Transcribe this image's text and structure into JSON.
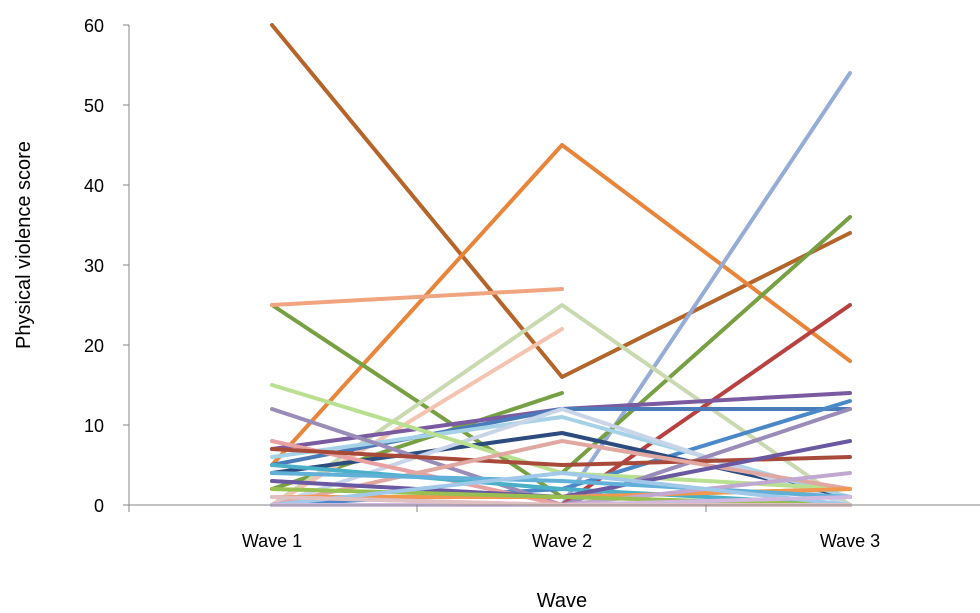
{
  "chart_data": {
    "type": "line",
    "title": "",
    "xlabel": "Wave",
    "ylabel": "Physical violence score",
    "categories": [
      "Wave 1",
      "Wave 2",
      "Wave 3"
    ],
    "y_ticks": [
      "0",
      "10",
      "20",
      "30",
      "40",
      "50",
      "60"
    ],
    "ylim": [
      0,
      60
    ],
    "grid": false,
    "legend": "none",
    "series": [
      {
        "color": "#b5642a",
        "values": [
          60,
          16,
          34
        ]
      },
      {
        "color": "#e8853a",
        "values": [
          5,
          45,
          18
        ]
      },
      {
        "color": "#95acd6",
        "values": [
          0,
          0,
          54
        ]
      },
      {
        "color": "#77a043",
        "values": [
          25,
          1,
          2
        ]
      },
      {
        "color": "#77a043",
        "values": [
          2,
          14,
          null
        ]
      },
      {
        "color": "#77a043",
        "values": [
          null,
          4,
          36
        ]
      },
      {
        "color": "#f0a580",
        "values": [
          25,
          27,
          null
        ]
      },
      {
        "color": "#c9dab0",
        "values": [
          0,
          25,
          0
        ]
      },
      {
        "color": "#f5c4b0",
        "values": [
          0,
          22,
          null
        ]
      },
      {
        "color": "#b84040",
        "values": [
          null,
          0,
          25
        ]
      },
      {
        "color": "#7a5aa0",
        "values": [
          7,
          12,
          14
        ]
      },
      {
        "color": "#4a7ab8",
        "values": [
          5,
          12,
          12
        ]
      },
      {
        "color": "#4a88c8",
        "values": [
          0,
          2,
          13
        ]
      },
      {
        "color": "#2c4c80",
        "values": [
          4,
          9,
          1
        ]
      },
      {
        "color": "#a6d2e8",
        "values": [
          6,
          11,
          1
        ]
      },
      {
        "color": "#c8d4e8",
        "values": [
          0,
          12,
          0
        ]
      },
      {
        "color": "#b8e090",
        "values": [
          15,
          4,
          2
        ]
      },
      {
        "color": "#9a8cb8",
        "values": [
          12,
          0,
          12
        ]
      },
      {
        "color": "#e8a0a0",
        "values": [
          8,
          0,
          0
        ]
      },
      {
        "color": "#a84a3a",
        "values": [
          7,
          5,
          6
        ]
      },
      {
        "color": "#e0a8a0",
        "values": [
          0,
          8,
          2
        ]
      },
      {
        "color": "#4ab0c8",
        "values": [
          5,
          2,
          0
        ]
      },
      {
        "color": "#6a58a0",
        "values": [
          3,
          1,
          8
        ]
      },
      {
        "color": "#f09850",
        "values": [
          1,
          1,
          2
        ]
      },
      {
        "color": "#60b0d8",
        "values": [
          4,
          3,
          1
        ]
      },
      {
        "color": "#c0a8d0",
        "values": [
          1,
          0,
          4
        ]
      },
      {
        "color": "#98c050",
        "values": [
          2,
          1,
          0
        ]
      },
      {
        "color": "#a0c8e8",
        "values": [
          0,
          4,
          0
        ]
      },
      {
        "color": "#d0b8e0",
        "values": [
          0,
          0,
          1
        ]
      },
      {
        "color": "#e0c0c0",
        "values": [
          1,
          0,
          0
        ]
      }
    ]
  }
}
